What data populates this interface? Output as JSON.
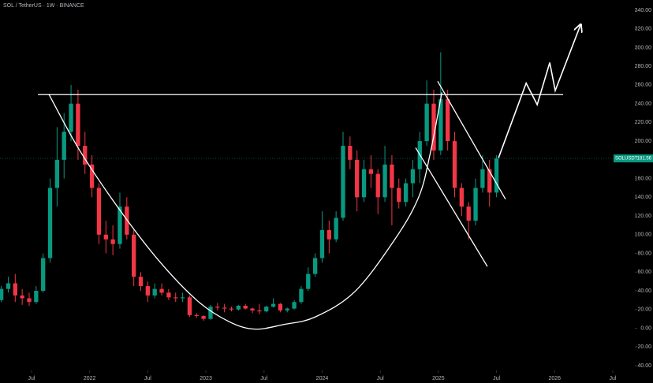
{
  "chart_data": {
    "type": "candlestick",
    "title": "SOL / TetherUS · 1W · BINANCE",
    "symbol": "SOLUSDT",
    "up_color": "#089981",
    "down_color": "#f23645",
    "x": [
      2021.24,
      2021.3,
      2021.36,
      2021.42,
      2021.48,
      2021.54,
      2021.6,
      2021.66,
      2021.72,
      2021.78,
      2021.84,
      2021.9,
      2021.96,
      2022.02,
      2022.08,
      2022.14,
      2022.2,
      2022.26,
      2022.32,
      2022.38,
      2022.44,
      2022.5,
      2022.56,
      2022.62,
      2022.68,
      2022.74,
      2022.8,
      2022.86,
      2022.92,
      2022.98,
      2023.04,
      2023.1,
      2023.16,
      2023.22,
      2023.28,
      2023.34,
      2023.4,
      2023.46,
      2023.52,
      2023.58,
      2023.64,
      2023.7,
      2023.76,
      2023.82,
      2023.88,
      2023.94,
      2024,
      2024.06,
      2024.12,
      2024.18,
      2024.24,
      2024.3,
      2024.36,
      2024.42,
      2024.48,
      2024.54,
      2024.6,
      2024.66,
      2024.72,
      2024.78,
      2024.84,
      2024.9,
      2024.96,
      2025.02,
      2025.08,
      2025.14,
      2025.2,
      2025.26,
      2025.32,
      2025.38,
      2025.44,
      2025.5
    ],
    "open": [
      30,
      42,
      48,
      35,
      32,
      28,
      40,
      75,
      150,
      180,
      210,
      240,
      195,
      175,
      150,
      100,
      95,
      90,
      130,
      100,
      55,
      45,
      35,
      42,
      38,
      33,
      32,
      33,
      14,
      13,
      10,
      23,
      22,
      21,
      20,
      24,
      21,
      19,
      18,
      23,
      26,
      19,
      21,
      28,
      42,
      58,
      75,
      105,
      95,
      118,
      195,
      180,
      140,
      170,
      165,
      140,
      175,
      150,
      135,
      155,
      170,
      200,
      240,
      190,
      245,
      200,
      150,
      130,
      115,
      150,
      170,
      145
    ],
    "high": [
      45,
      55,
      58,
      42,
      38,
      45,
      80,
      160,
      215,
      230,
      260,
      255,
      210,
      185,
      155,
      115,
      110,
      145,
      140,
      105,
      60,
      50,
      48,
      48,
      42,
      38,
      38,
      35,
      16,
      14,
      25,
      27,
      26,
      23,
      25,
      26,
      22,
      26,
      24,
      32,
      27,
      22,
      30,
      45,
      65,
      80,
      125,
      115,
      125,
      210,
      205,
      190,
      180,
      185,
      170,
      195,
      185,
      160,
      160,
      180,
      210,
      265,
      255,
      295,
      255,
      210,
      155,
      135,
      160,
      185,
      180,
      185
    ],
    "low": [
      28,
      38,
      28,
      25,
      24,
      26,
      38,
      70,
      130,
      160,
      200,
      180,
      165,
      140,
      90,
      80,
      78,
      85,
      95,
      45,
      40,
      28,
      32,
      35,
      30,
      28,
      28,
      12,
      11,
      8,
      9,
      19,
      17,
      18,
      19,
      20,
      16,
      15,
      17,
      22,
      17,
      17,
      20,
      26,
      40,
      55,
      70,
      80,
      92,
      115,
      170,
      125,
      135,
      150,
      122,
      135,
      110,
      128,
      130,
      140,
      155,
      195,
      180,
      185,
      190,
      140,
      120,
      95,
      110,
      145,
      130,
      140
    ],
    "close": [
      42,
      48,
      35,
      32,
      28,
      40,
      75,
      150,
      180,
      210,
      240,
      195,
      175,
      150,
      100,
      95,
      90,
      130,
      100,
      55,
      45,
      35,
      42,
      38,
      33,
      32,
      33,
      14,
      13,
      10,
      23,
      22,
      21,
      20,
      24,
      21,
      19,
      18,
      23,
      26,
      19,
      21,
      28,
      42,
      58,
      75,
      105,
      95,
      118,
      195,
      180,
      140,
      170,
      165,
      140,
      175,
      150,
      135,
      155,
      170,
      200,
      240,
      190,
      245,
      200,
      150,
      130,
      115,
      150,
      170,
      145,
      181.56
    ],
    "xlim": [
      2021.229,
      2026.69
    ],
    "xticks": [
      {
        "value": 2021.5,
        "label": "Jul"
      },
      2022,
      {
        "value": 2022.5,
        "label": "Jul"
      },
      2023,
      {
        "value": 2023.5,
        "label": "Jul"
      },
      2024,
      {
        "value": 2024.5,
        "label": "Jul"
      },
      2025,
      {
        "value": 2025.5,
        "label": "Jul"
      },
      2026,
      {
        "value": 2026.5,
        "label": "Jul"
      }
    ],
    "ylim": [
      -45.1,
      350.9
    ],
    "yticks": [
      {
        "value": -40,
        "label": "-40.00"
      },
      {
        "value": -20,
        "label": "-20.00"
      },
      {
        "value": 0,
        "label": "0.00"
      },
      {
        "value": 20,
        "label": "20.00"
      },
      {
        "value": 40,
        "label": "40.00"
      },
      {
        "value": 60,
        "label": "60.00"
      },
      {
        "value": 80,
        "label": "80.00"
      },
      {
        "value": 100,
        "label": "100.00"
      },
      {
        "value": 120,
        "label": "120.00"
      },
      {
        "value": 140,
        "label": "140.00"
      },
      {
        "value": 160,
        "label": "160.00"
      },
      {
        "value": 180,
        "label": "180.00"
      },
      {
        "value": 200,
        "label": "200.00"
      },
      {
        "value": 220,
        "label": "220.00"
      },
      {
        "value": 240,
        "label": "240.00"
      },
      {
        "value": 260,
        "label": "260.00"
      },
      {
        "value": 280,
        "label": "280.00"
      },
      {
        "value": 300,
        "label": "300.00"
      },
      {
        "value": 320,
        "label": "320.00"
      },
      {
        "value": 340,
        "label": "340.00"
      }
    ],
    "drawing_color": "#ffffff",
    "drawings": {
      "resistance": {
        "x": [
          2021.555,
          2026.073
        ],
        "y": [
          250,
          250
        ]
      },
      "cup": {
        "x": [
          2021.65,
          2021.91,
          2022.25,
          2022.59,
          2022.93,
          2023.2,
          2023.42,
          2023.67,
          2023.94,
          2024.28,
          2024.62,
          2024.83,
          2024.93,
          2025.03
        ],
        "y": [
          250,
          191,
          128,
          73,
          29,
          7,
          -1,
          4,
          12,
          39,
          94,
          140,
          187,
          252
        ]
      },
      "channel_upper": {
        "x": [
          2024.994,
          2025.577
        ],
        "y": [
          264,
          138
        ]
      },
      "channel_lower": {
        "x": [
          2024.804,
          2025.421
        ],
        "y": [
          193,
          66
        ]
      },
      "projection": {
        "x": [
          2025.517,
          2025.755,
          2025.85,
          2025.958,
          2026.005,
          2026.222
        ],
        "y": [
          182,
          262,
          239,
          284,
          254,
          324
        ]
      }
    }
  }
}
